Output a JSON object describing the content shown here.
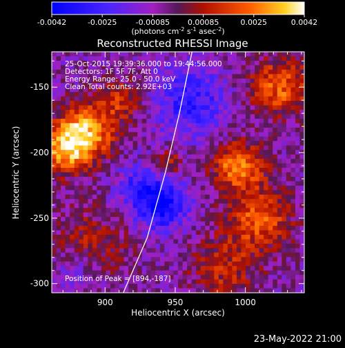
{
  "chart_data": {
    "type": "heatmap",
    "title": "Reconstructed RHESSI Image",
    "xlabel": "Heliocentric X (arcsec)",
    "ylabel": "Heliocentric Y (arcsec)",
    "xlim": [
      862,
      1042
    ],
    "ylim": [
      -307,
      -123
    ],
    "x_ticks": [
      900,
      950,
      1000
    ],
    "y_ticks": [
      -150,
      -200,
      -250,
      -300
    ],
    "colorbar": {
      "min": -0.0042,
      "max": 0.0042,
      "ticks": [
        "-0.0042",
        "-0.0025",
        "-0.00085",
        "0.00085",
        "0.0025",
        "0.0042"
      ],
      "unit_parts": [
        "(photons cm",
        "-2",
        " s",
        "-1",
        " asec",
        "-2",
        ")"
      ]
    },
    "annotations": [
      "25-Oct-2015 19:39:36.000 to 19:44:56.000",
      "Detectors: 1F 5F 7F, Att 0",
      "Energy Range: 25.0 - 50.0 keV",
      "Clean  Total counts: 2.92E+03"
    ],
    "peak_label": "Position of Peak = [894,-187]",
    "peak_position": [
      894,
      -187
    ],
    "limb_points": [
      [
        913,
        -307
      ],
      [
        930,
        -265
      ],
      [
        943,
        -215
      ],
      [
        953,
        -170
      ],
      [
        962,
        -123
      ]
    ],
    "intensity_sources": [
      {
        "x": 885,
        "y": -185,
        "amplitude": 0.0042,
        "sigma": 15
      },
      {
        "x": 870,
        "y": -200,
        "amplitude": 0.003,
        "sigma": 12
      },
      {
        "x": 912,
        "y": -160,
        "amplitude": 0.002,
        "sigma": 12
      },
      {
        "x": 995,
        "y": -210,
        "amplitude": 0.0036,
        "sigma": 13
      },
      {
        "x": 1010,
        "y": -250,
        "amplitude": 0.0028,
        "sigma": 17
      },
      {
        "x": 1025,
        "y": -150,
        "amplitude": 0.003,
        "sigma": 16
      },
      {
        "x": 985,
        "y": -290,
        "amplitude": 0.0018,
        "sigma": 18
      },
      {
        "x": 890,
        "y": -270,
        "amplitude": 0.0016,
        "sigma": 20
      },
      {
        "x": 945,
        "y": -208,
        "amplitude": 0.0022,
        "sigma": 7
      },
      {
        "x": 940,
        "y": -240,
        "amplitude": -0.0032,
        "sigma": 13
      },
      {
        "x": 960,
        "y": -160,
        "amplitude": -0.0022,
        "sigma": 18
      },
      {
        "x": 925,
        "y": -225,
        "amplitude": -0.0016,
        "sigma": 12
      },
      {
        "x": 880,
        "y": -290,
        "amplitude": -0.0012,
        "sigma": 12
      }
    ],
    "baseline": -0.0008
  },
  "footer_date": "23-May-2022 21:00"
}
